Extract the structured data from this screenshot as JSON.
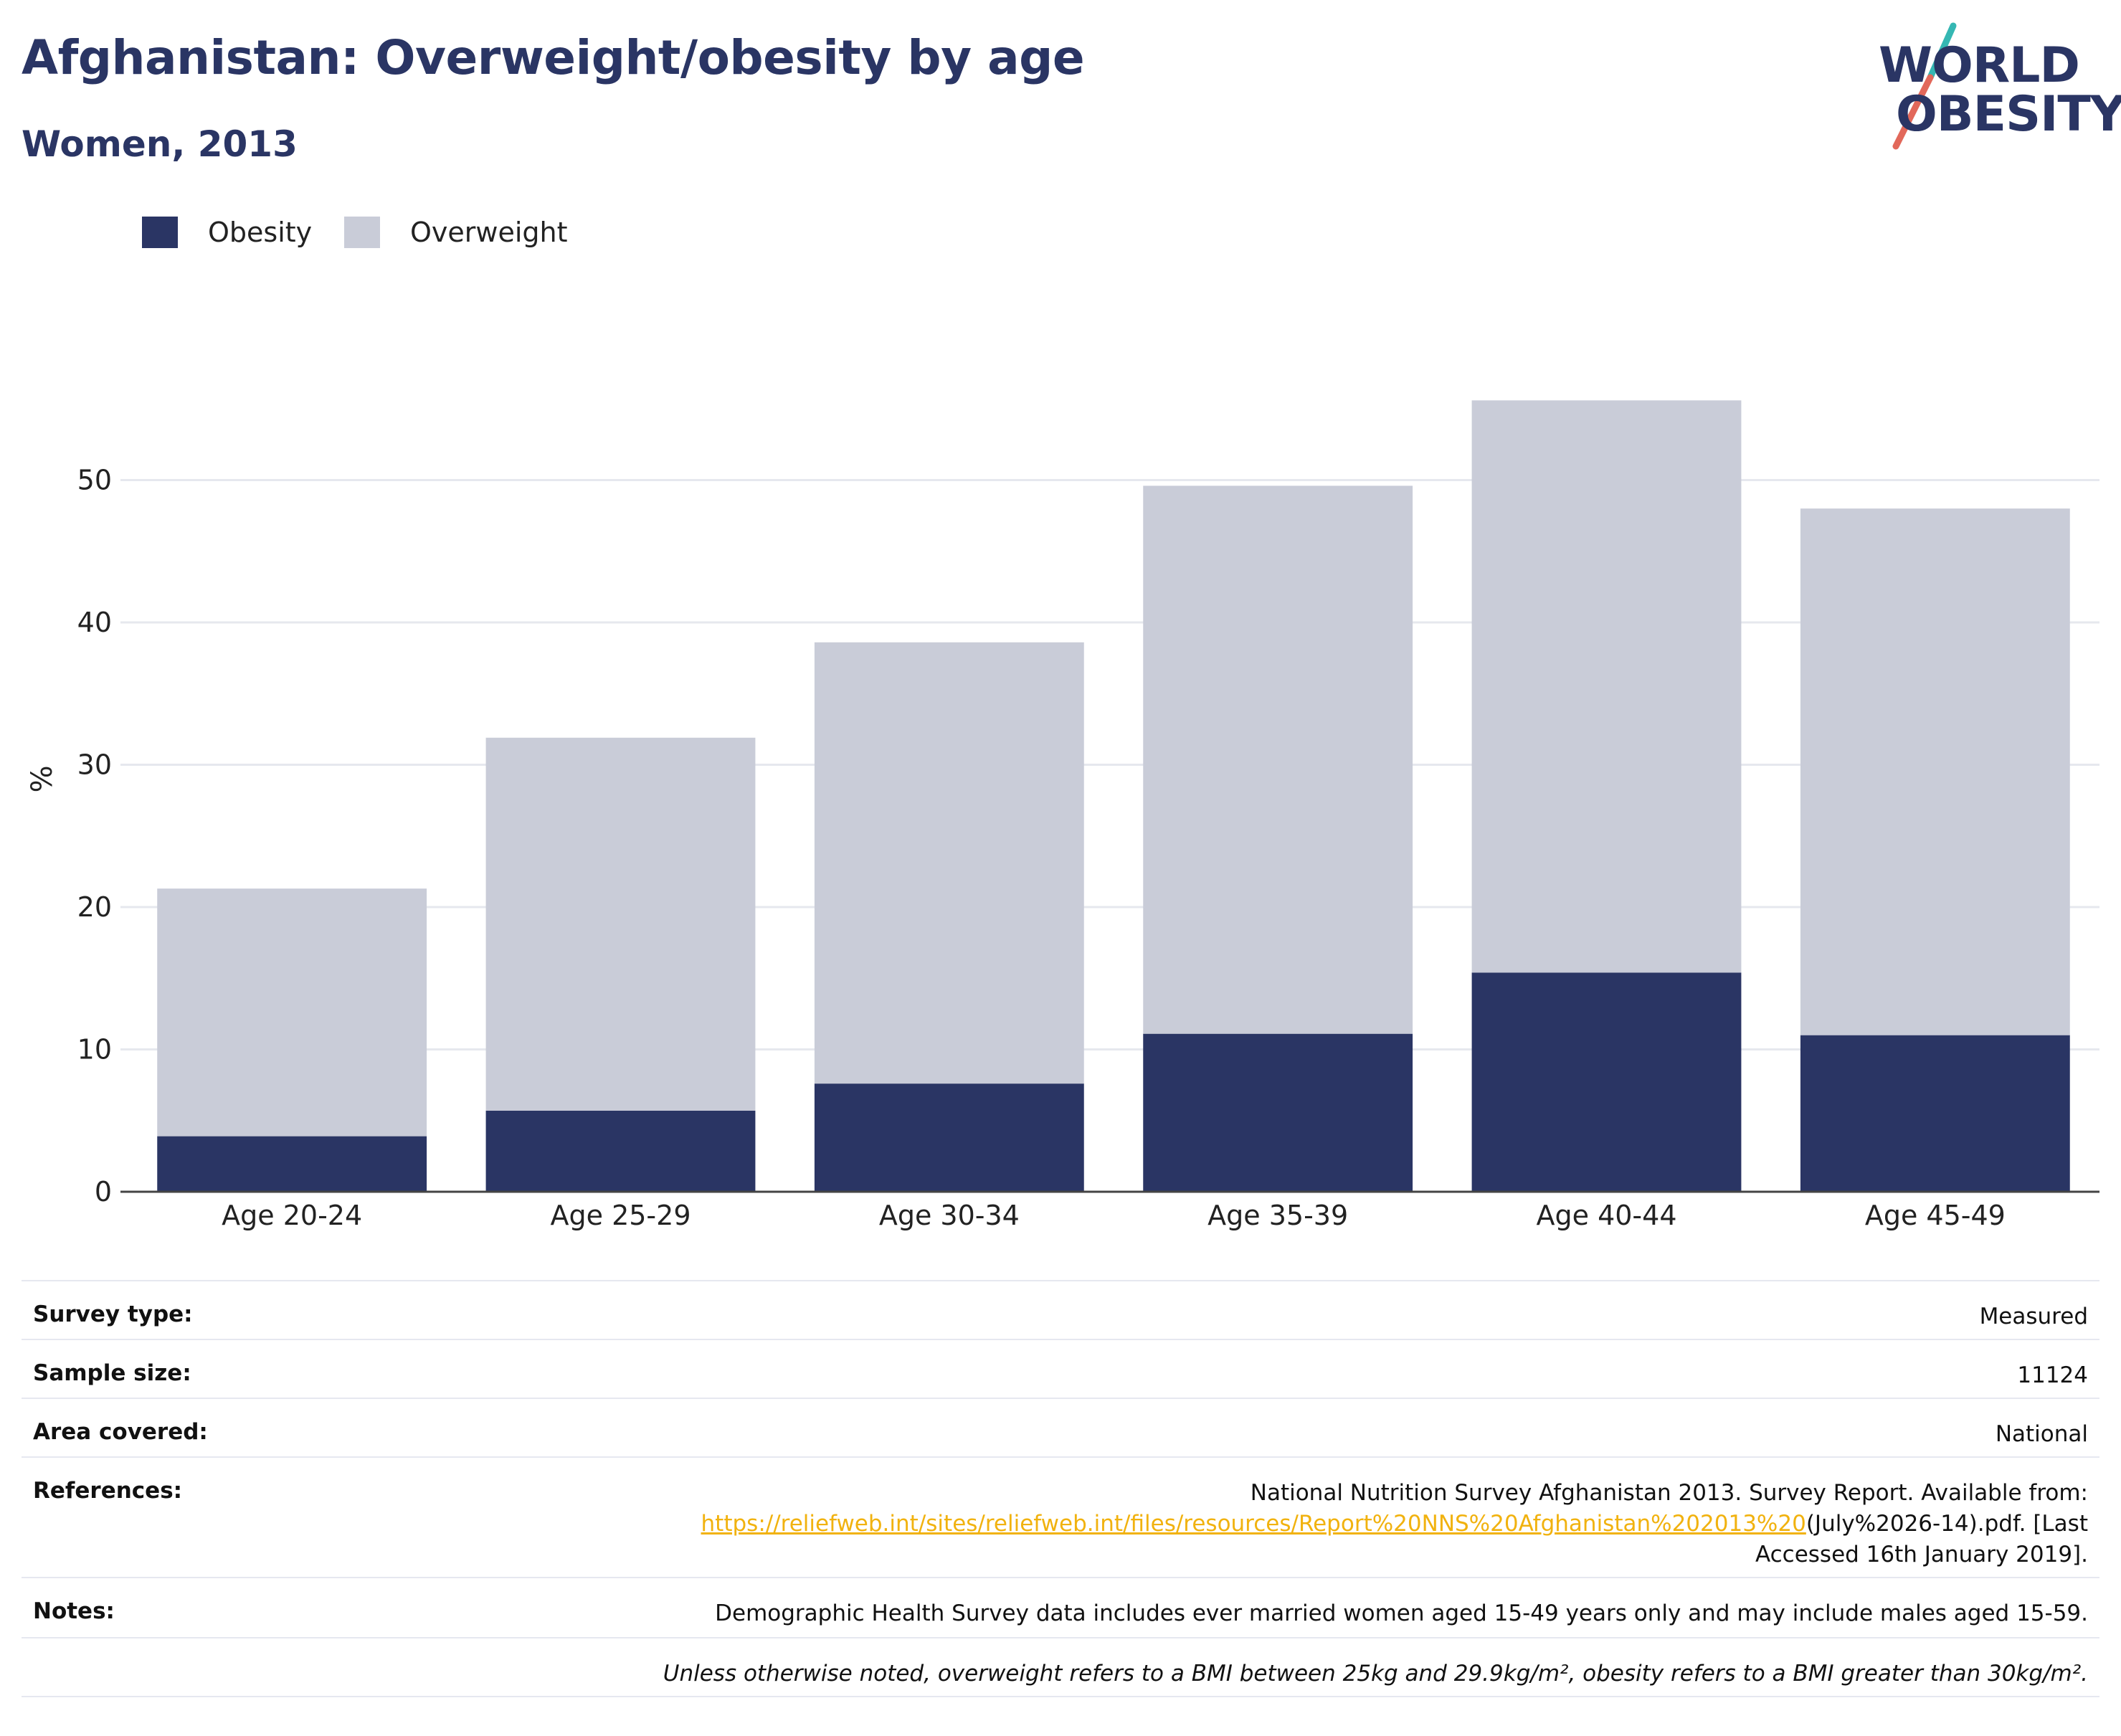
{
  "header": {
    "title": "Afghanistan: Overweight/obesity by age",
    "subtitle": "Women, 2013"
  },
  "logo": {
    "line1": "WORLD",
    "line2": "OBESITY",
    "colors": {
      "text": "#2a3564",
      "slash_top": "#35b7b3",
      "slash_bottom": "#e2685a"
    }
  },
  "legend": [
    {
      "label": "Obesity",
      "color": "#2a3564"
    },
    {
      "label": "Overweight",
      "color": "#c9ccd8"
    }
  ],
  "chart_data": {
    "type": "bar",
    "stacked": true,
    "title": "",
    "xlabel": "",
    "ylabel": "%",
    "categories": [
      "Age 20-24",
      "Age 25-29",
      "Age 30-34",
      "Age 35-39",
      "Age 40-44",
      "Age 45-49"
    ],
    "series": [
      {
        "name": "Obesity",
        "color": "#2a3564",
        "values": [
          3.9,
          5.7,
          7.6,
          11.1,
          15.4,
          11.0
        ]
      },
      {
        "name": "Overweight",
        "color": "#c9ccd8",
        "values": [
          17.4,
          26.2,
          31.0,
          38.5,
          40.2,
          37.0
        ]
      }
    ],
    "ylim": [
      0,
      58
    ],
    "yticks": [
      0,
      10,
      20,
      30,
      40,
      50
    ],
    "grid": true,
    "legend_position": "top-left"
  },
  "info": {
    "survey_type": {
      "label": "Survey type:",
      "value": "Measured"
    },
    "sample_size": {
      "label": "Sample size:",
      "value": "11124"
    },
    "area_covered": {
      "label": "Area covered:",
      "value": "National"
    },
    "references": {
      "label": "References:",
      "text_before": "National Nutrition Survey Afghanistan 2013. Survey Report. Available from:",
      "link": "https://reliefweb.int/sites/reliefweb.int/files/resources/Report%20NNS%20Afghanistan%202013%20",
      "text_after": "(July%2026-14).pdf. [Last",
      "text_end": "Accessed 16th January 2019]."
    },
    "notes": {
      "label": "Notes:",
      "value": "Demographic Health Survey data includes ever married women aged 15-49 years only and may include males aged 15-59."
    },
    "footnote": "Unless otherwise noted, overweight refers to a BMI between 25kg and 29.9kg/m², obesity refers to a BMI greater than 30kg/m²."
  }
}
